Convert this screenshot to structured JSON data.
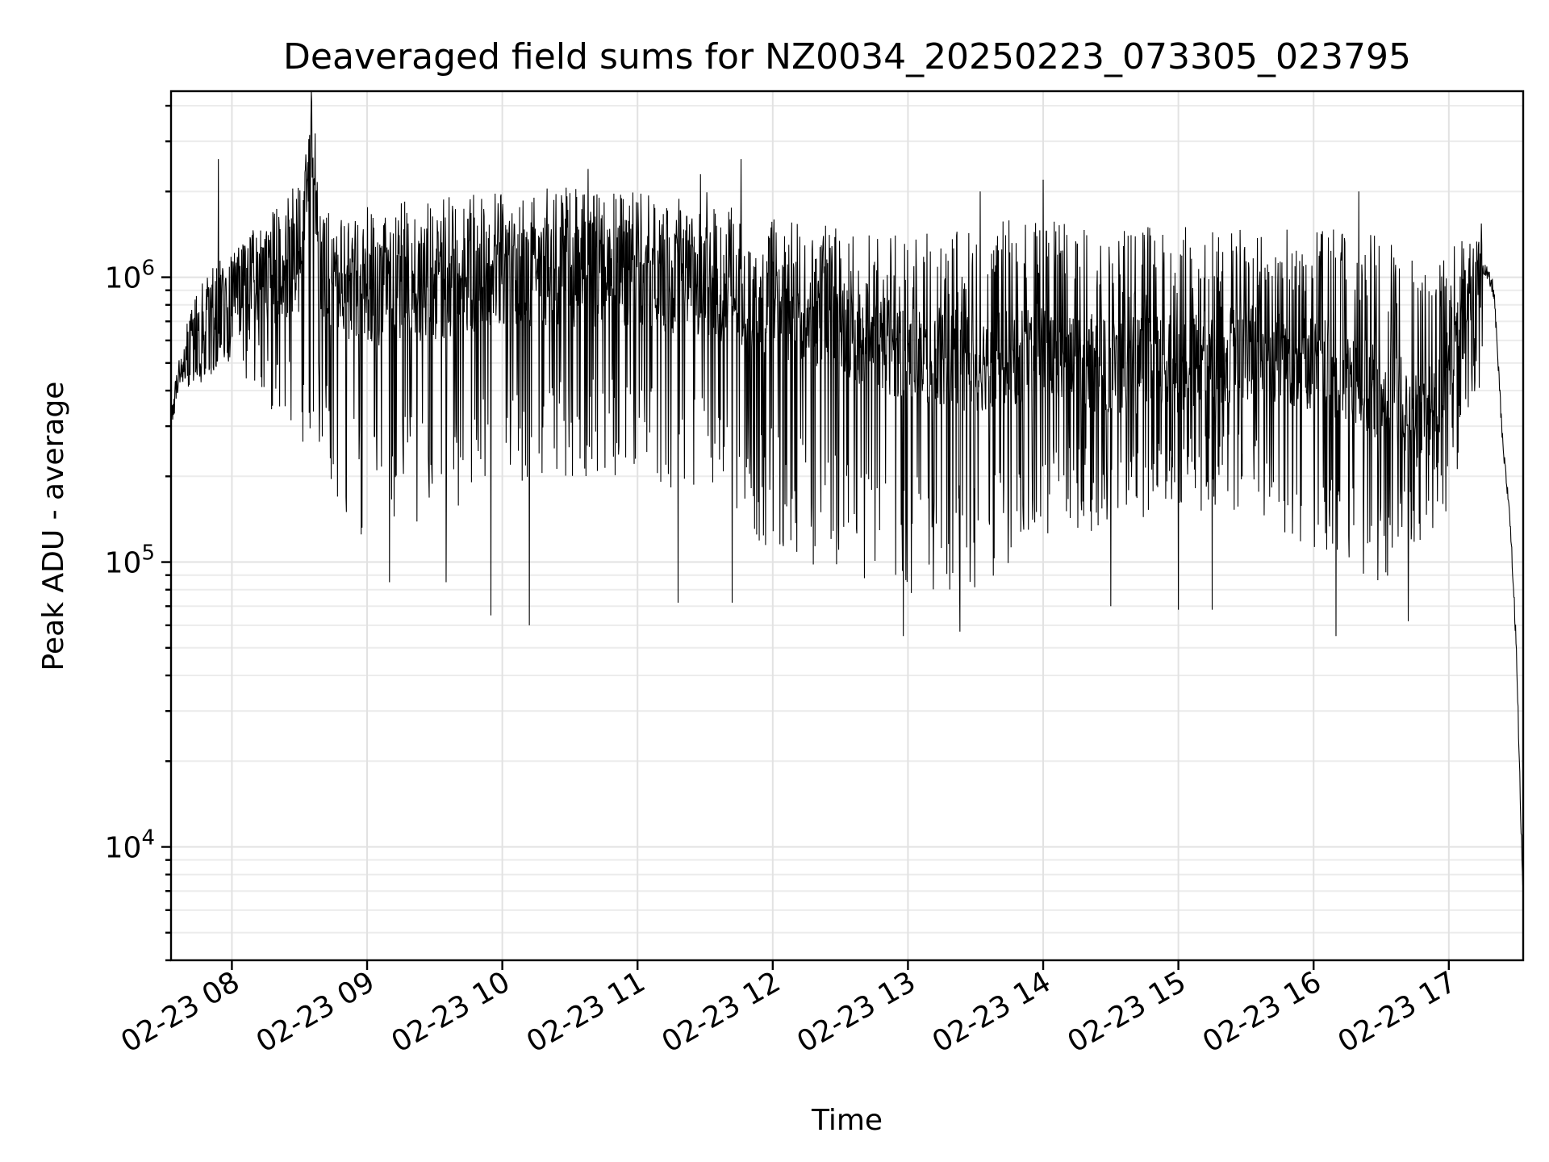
{
  "chart_data": {
    "type": "line",
    "title": "Deaveraged field sums for NZ0034_20250223_073305_023795",
    "xlabel": "Time",
    "ylabel": "Peak ADU - average",
    "yscale": "log",
    "grid": true,
    "x_range": [
      "2025-02-23 07:33",
      "2025-02-23 17:33"
    ],
    "ylim": [
      4000,
      4500000
    ],
    "x_ticks": [
      {
        "t": "2025-02-23 08:00",
        "label": "02-23 08"
      },
      {
        "t": "2025-02-23 09:00",
        "label": "02-23 09"
      },
      {
        "t": "2025-02-23 10:00",
        "label": "02-23 10"
      },
      {
        "t": "2025-02-23 11:00",
        "label": "02-23 11"
      },
      {
        "t": "2025-02-23 12:00",
        "label": "02-23 12"
      },
      {
        "t": "2025-02-23 13:00",
        "label": "02-23 13"
      },
      {
        "t": "2025-02-23 14:00",
        "label": "02-23 14"
      },
      {
        "t": "2025-02-23 15:00",
        "label": "02-23 15"
      },
      {
        "t": "2025-02-23 16:00",
        "label": "02-23 16"
      },
      {
        "t": "2025-02-23 17:00",
        "label": "02-23 17"
      }
    ],
    "y_ticks": [
      {
        "value": 10000,
        "base": "10",
        "exp": "4"
      },
      {
        "value": 100000,
        "base": "10",
        "exp": "5"
      },
      {
        "value": 1000000,
        "base": "10",
        "exp": "6"
      }
    ],
    "series": [
      {
        "color": "#000000",
        "points": [
          [
            "2025-02-23 07:33",
            300000
          ],
          [
            "2025-02-23 07:36",
            450000
          ],
          [
            "2025-02-23 07:40",
            520000
          ],
          [
            "2025-02-23 07:45",
            600000
          ],
          [
            "2025-02-23 07:50",
            700000
          ],
          [
            "2025-02-23 07:55",
            780000
          ],
          [
            "2025-02-23 08:00",
            850000
          ],
          [
            "2025-02-23 08:10",
            1000000
          ],
          [
            "2025-02-23 08:30",
            1050000
          ],
          [
            "2025-02-23 08:35",
            3500000
          ],
          [
            "2025-02-23 08:40",
            1000000
          ],
          [
            "2025-02-23 09:00",
            850000
          ],
          [
            "2025-02-23 09:30",
            900000
          ],
          [
            "2025-02-23 10:00",
            1000000
          ],
          [
            "2025-02-23 10:30",
            1000000
          ],
          [
            "2025-02-23 11:00",
            1000000
          ],
          [
            "2025-02-23 11:30",
            900000
          ],
          [
            "2025-02-23 12:00",
            800000
          ],
          [
            "2025-02-23 12:30",
            650000
          ],
          [
            "2025-02-23 13:00",
            550000
          ],
          [
            "2025-02-23 13:30",
            500000
          ],
          [
            "2025-02-23 14:00",
            550000
          ],
          [
            "2025-02-23 14:30",
            480000
          ],
          [
            "2025-02-23 15:00",
            500000
          ],
          [
            "2025-02-23 15:30",
            550000
          ],
          [
            "2025-02-23 16:00",
            500000
          ],
          [
            "2025-02-23 16:30",
            400000
          ],
          [
            "2025-02-23 16:50",
            300000
          ],
          [
            "2025-02-23 17:00",
            500000
          ],
          [
            "2025-02-23 17:15",
            1100000
          ],
          [
            "2025-02-23 17:20",
            900000
          ],
          [
            "2025-02-23 17:24",
            250000
          ],
          [
            "2025-02-23 17:27",
            150000
          ],
          [
            "2025-02-23 17:30",
            50000
          ],
          [
            "2025-02-23 17:32",
            12000
          ],
          [
            "2025-02-23 17:33",
            7000
          ]
        ],
        "envelope": [
          {
            "t": "2025-02-23 07:40",
            "low": 400000,
            "high": 700000
          },
          {
            "t": "2025-02-23 08:00",
            "low": 500000,
            "high": 1200000
          },
          {
            "t": "2025-02-23 08:30",
            "low": 250000,
            "high": 2200000
          },
          {
            "t": "2025-02-23 09:00",
            "low": 110000,
            "high": 1800000
          },
          {
            "t": "2025-02-23 09:30",
            "low": 150000,
            "high": 1900000
          },
          {
            "t": "2025-02-23 10:00",
            "low": 160000,
            "high": 2000000
          },
          {
            "t": "2025-02-23 10:30",
            "low": 200000,
            "high": 2100000
          },
          {
            "t": "2025-02-23 11:00",
            "low": 200000,
            "high": 2000000
          },
          {
            "t": "2025-02-23 11:30",
            "low": 160000,
            "high": 2000000
          },
          {
            "t": "2025-02-23 12:00",
            "low": 110000,
            "high": 1600000
          },
          {
            "t": "2025-02-23 12:30",
            "low": 90000,
            "high": 1500000
          },
          {
            "t": "2025-02-23 13:00",
            "low": 75000,
            "high": 1400000
          },
          {
            "t": "2025-02-23 13:30",
            "low": 80000,
            "high": 1500000
          },
          {
            "t": "2025-02-23 14:00",
            "low": 120000,
            "high": 1700000
          },
          {
            "t": "2025-02-23 14:30",
            "low": 130000,
            "high": 1500000
          },
          {
            "t": "2025-02-23 15:00",
            "low": 150000,
            "high": 1500000
          },
          {
            "t": "2025-02-23 15:30",
            "low": 150000,
            "high": 1500000
          },
          {
            "t": "2025-02-23 16:00",
            "low": 110000,
            "high": 1500000
          },
          {
            "t": "2025-02-23 16:30",
            "low": 80000,
            "high": 1400000
          },
          {
            "t": "2025-02-23 17:00",
            "low": 150000,
            "high": 1300000
          },
          {
            "t": "2025-02-23 17:15",
            "low": 450000,
            "high": 1500000
          }
        ],
        "dips": [
          [
            "2025-02-23 09:10",
            85000
          ],
          [
            "2025-02-23 09:35",
            85000
          ],
          [
            "2025-02-23 09:55",
            65000
          ],
          [
            "2025-02-23 10:12",
            60000
          ],
          [
            "2025-02-23 11:18",
            72000
          ],
          [
            "2025-02-23 11:42",
            72000
          ],
          [
            "2025-02-23 12:58",
            55000
          ],
          [
            "2025-02-23 13:23",
            57000
          ],
          [
            "2025-02-23 14:30",
            70000
          ],
          [
            "2025-02-23 15:00",
            68000
          ],
          [
            "2025-02-23 15:15",
            68000
          ],
          [
            "2025-02-23 16:10",
            55000
          ],
          [
            "2025-02-23 16:42",
            62000
          ]
        ],
        "spikes": [
          [
            "2025-02-23 07:54",
            2600000
          ],
          [
            "2025-02-23 08:35",
            3500000
          ],
          [
            "2025-02-23 10:38",
            2400000
          ],
          [
            "2025-02-23 11:28",
            2300000
          ],
          [
            "2025-02-23 11:46",
            2600000
          ],
          [
            "2025-02-23 13:32",
            2000000
          ],
          [
            "2025-02-23 14:00",
            2200000
          ],
          [
            "2025-02-23 16:20",
            2000000
          ]
        ]
      }
    ]
  }
}
